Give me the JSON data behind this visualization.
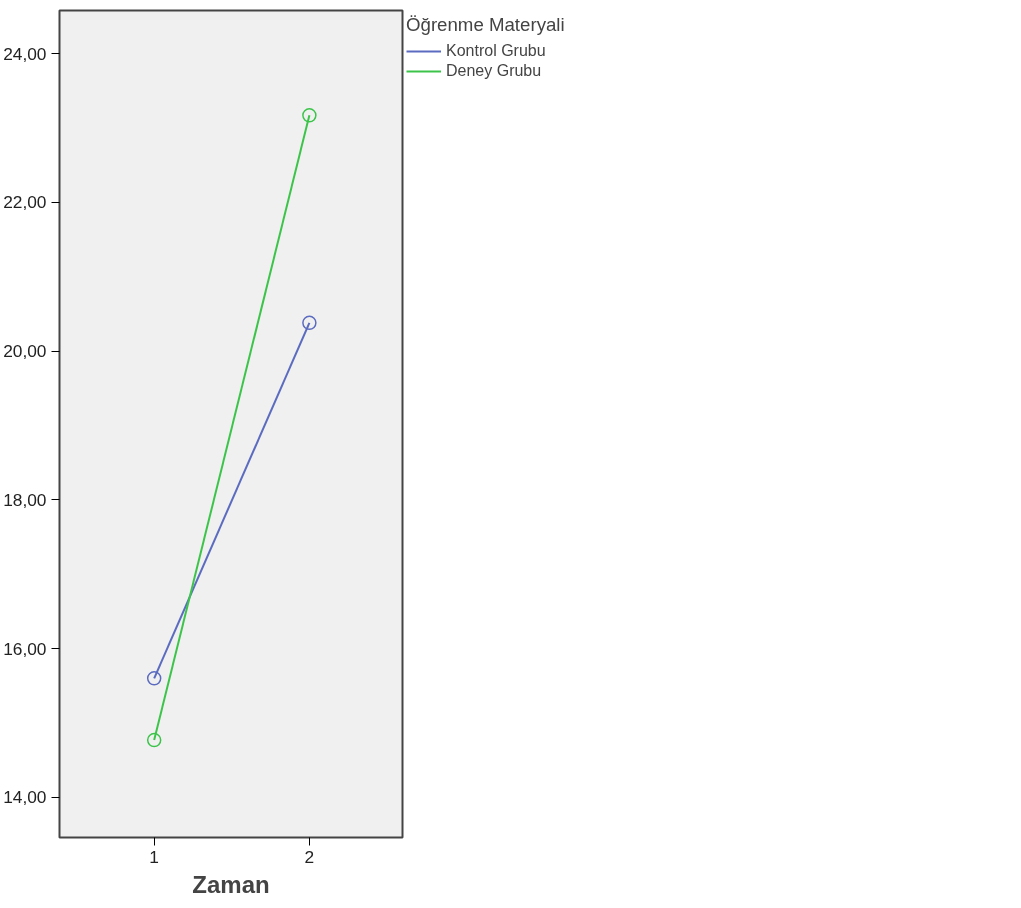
{
  "chart_data": {
    "type": "line",
    "xlabel": "Zaman",
    "categories": [
      "1",
      "2"
    ],
    "series": [
      {
        "name": "Kontrol Grubu",
        "color": "#5b6bbf",
        "values": [
          15.6,
          20.38
        ]
      },
      {
        "name": "Deney Grubu",
        "color": "#3cc44a",
        "values": [
          14.77,
          23.17
        ]
      }
    ],
    "ylim": [
      13.46,
      24.58
    ],
    "yticks": [
      {
        "value": 14,
        "label": "14,00"
      },
      {
        "value": 16,
        "label": "16,00"
      },
      {
        "value": 18,
        "label": "18,00"
      },
      {
        "value": 20,
        "label": "20,00"
      },
      {
        "value": 22,
        "label": "22,00"
      },
      {
        "value": 24,
        "label": "24,00"
      }
    ],
    "legend_title": "Öğrenme Materyali",
    "legend": "right",
    "marker": "circle",
    "line_style": "solid",
    "grid": false
  }
}
